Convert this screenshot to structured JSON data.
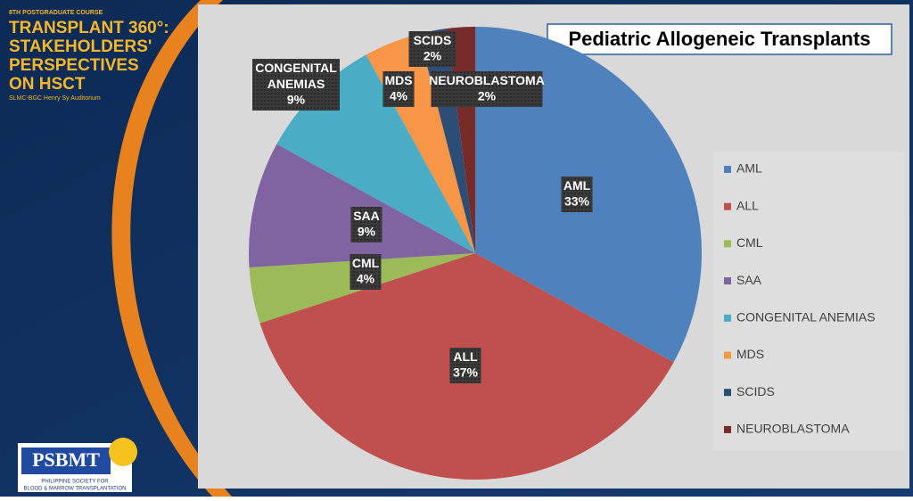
{
  "slide": {
    "course": "8TH POSTGRADUATE COURSE",
    "heading": [
      "TRANSPLANT 360°:",
      "STAKEHOLDERS'",
      "PERSPECTIVES",
      "ON HSCT"
    ],
    "venue": "SLMC-BGC Henry Sy Auditorium",
    "logo": {
      "name": "PSBMT",
      "line1": "PHILIPPINE SOCIETY FOR",
      "line2": "BLOOD & MARROW TRANSPLANTATION"
    }
  },
  "chart_data": {
    "type": "pie",
    "title": "Pediatric Allogeneic Transplants",
    "categories": [
      "AML",
      "ALL",
      "CML",
      "SAA",
      "CONGENITAL ANEMIAS",
      "MDS",
      "SCIDS",
      "NEUROBLASTOMA"
    ],
    "values": [
      33,
      37,
      4,
      9,
      9,
      4,
      2,
      2
    ],
    "value_labels": [
      "33%",
      "37%",
      "4%",
      "9%",
      "9%",
      "4%",
      "2%",
      "2%"
    ],
    "label_categories": [
      "AML",
      "ALL",
      "CML",
      "SAA",
      "CONGENITAL\nANEMIAS",
      "MDS",
      "SCIDS",
      "NEUROBLASTOMA"
    ],
    "colors": [
      "#4f81bd",
      "#c0504d",
      "#9bbb59",
      "#8064a2",
      "#4bacc6",
      "#f79646",
      "#2c4d75",
      "#772c2a"
    ],
    "legend": "right"
  }
}
